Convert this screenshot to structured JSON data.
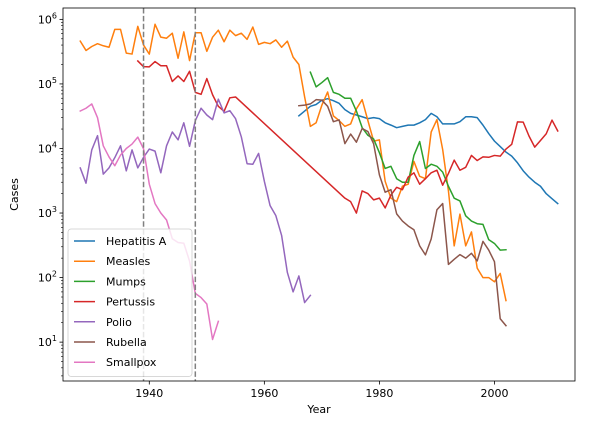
{
  "chart_data": {
    "type": "line",
    "title": "",
    "xlabel": "Year",
    "ylabel": "Cases",
    "xlim": [
      1925,
      2014
    ],
    "ylim": [
      2.5,
      1500000
    ],
    "yscale": "log",
    "xticks": [
      1940,
      1960,
      1980,
      2000
    ],
    "yticks": [
      {
        "value": 10,
        "base": "10",
        "exp": "1"
      },
      {
        "value": 100,
        "base": "10",
        "exp": "2"
      },
      {
        "value": 1000,
        "base": "10",
        "exp": "3"
      },
      {
        "value": 10000,
        "base": "10",
        "exp": "4"
      },
      {
        "value": 100000,
        "base": "10",
        "exp": "5"
      },
      {
        "value": 1000000,
        "base": "10",
        "exp": "6"
      }
    ],
    "vlines": [
      1939,
      1948
    ],
    "grid": false,
    "legend": "lower-left",
    "series": [
      {
        "name": "Hepatitis A",
        "color": "#1f77b4",
        "x": [
          1966,
          1967,
          1968,
          1969,
          1970,
          1971,
          1972,
          1973,
          1974,
          1975,
          1976,
          1977,
          1978,
          1979,
          1980,
          1981,
          1982,
          1983,
          1984,
          1985,
          1986,
          1987,
          1988,
          1989,
          1990,
          1991,
          1992,
          1993,
          1994,
          1995,
          1996,
          1997,
          1998,
          1999,
          2000,
          2001,
          2002,
          2003,
          2004,
          2005,
          2006,
          2007,
          2008,
          2009,
          2010,
          2011
        ],
        "y": [
          32000,
          38000,
          45000,
          48000,
          56000,
          59000,
          55000,
          50000,
          40000,
          35000,
          33000,
          31000,
          29000,
          30000,
          29000,
          25000,
          23000,
          21000,
          22000,
          23000,
          23000,
          25000,
          28000,
          35000,
          31000,
          24000,
          24000,
          24000,
          26000,
          31000,
          31000,
          30000,
          23000,
          17000,
          13000,
          10700,
          8800,
          7600,
          6000,
          4500,
          3600,
          3000,
          2600,
          1990,
          1670,
          1400
        ]
      },
      {
        "name": "Measles",
        "color": "#ff7f0e",
        "x": [
          1928,
          1929,
          1930,
          1931,
          1932,
          1933,
          1934,
          1935,
          1936,
          1937,
          1938,
          1939,
          1940,
          1941,
          1942,
          1943,
          1944,
          1945,
          1946,
          1947,
          1948,
          1949,
          1950,
          1951,
          1952,
          1953,
          1954,
          1955,
          1956,
          1957,
          1958,
          1959,
          1960,
          1961,
          1962,
          1963,
          1964,
          1965,
          1966,
          1967,
          1968,
          1969,
          1970,
          1971,
          1972,
          1973,
          1974,
          1975,
          1976,
          1977,
          1978,
          1979,
          1980,
          1981,
          1982,
          1983,
          1984,
          1985,
          1986,
          1987,
          1988,
          1989,
          1990,
          1991,
          1992,
          1993,
          1994,
          1995,
          1996,
          1997,
          1998,
          1999,
          2000,
          2001,
          2002
        ],
        "y": [
          460000,
          330000,
          380000,
          420000,
          390000,
          370000,
          700000,
          700000,
          300000,
          290000,
          780000,
          400000,
          290000,
          840000,
          530000,
          510000,
          610000,
          250000,
          640000,
          230000,
          620000,
          620000,
          320000,
          530000,
          680000,
          450000,
          680000,
          560000,
          610000,
          490000,
          760000,
          410000,
          440000,
          420000,
          480000,
          370000,
          460000,
          260000,
          200000,
          63000,
          22000,
          25000,
          47000,
          75000,
          32000,
          27000,
          22000,
          24000,
          41000,
          57000,
          27000,
          13000,
          13600,
          3100,
          1700,
          1500,
          2600,
          2800,
          6300,
          3700,
          3400,
          18000,
          28000,
          9600,
          2200,
          310,
          960,
          310,
          510,
          140,
          100,
          100,
          86,
          116,
          44
        ]
      },
      {
        "name": "Mumps",
        "color": "#2ca02c",
        "x": [
          1968,
          1969,
          1970,
          1971,
          1972,
          1973,
          1974,
          1975,
          1976,
          1977,
          1978,
          1979,
          1980,
          1981,
          1982,
          1983,
          1984,
          1985,
          1986,
          1987,
          1988,
          1989,
          1990,
          1991,
          1992,
          1993,
          1994,
          1995,
          1996,
          1997,
          1998,
          1999,
          2000,
          2001,
          2002
        ],
        "y": [
          152000,
          90000,
          105000,
          125000,
          74000,
          69000,
          60000,
          60000,
          38000,
          21000,
          16000,
          14000,
          8600,
          4900,
          5300,
          3400,
          3000,
          3000,
          7800,
          12800,
          4900,
          5700,
          5300,
          4300,
          2600,
          1700,
          1540,
          906,
          750,
          683,
          666,
          387,
          338,
          266,
          270
        ]
      },
      {
        "name": "Pertussis",
        "color": "#d62728",
        "x": [
          1938,
          1939,
          1940,
          1941,
          1942,
          1943,
          1944,
          1945,
          1946,
          1947,
          1948,
          1949,
          1950,
          1951,
          1952,
          1953,
          1954,
          1955,
          1974,
          1975,
          1976,
          1977,
          1978,
          1979,
          1980,
          1981,
          1982,
          1983,
          1984,
          1985,
          1986,
          1987,
          1988,
          1989,
          1990,
          1991,
          1992,
          1993,
          1994,
          1995,
          1996,
          1997,
          1998,
          1999,
          2000,
          2001,
          2002,
          2003,
          2004,
          2005,
          2006,
          2007,
          2008,
          2009,
          2010,
          2011
        ],
        "y": [
          227000,
          185000,
          184000,
          222000,
          191000,
          191000,
          109000,
          133000,
          109000,
          157000,
          74000,
          69000,
          121000,
          68000,
          45000,
          37700,
          60900,
          62800,
          1700,
          1500,
          1000,
          2200,
          2000,
          1600,
          1700,
          1200,
          1900,
          2500,
          2300,
          3600,
          4200,
          2800,
          3400,
          4200,
          4600,
          2700,
          4100,
          6600,
          4600,
          5100,
          7800,
          6500,
          7400,
          7300,
          7800,
          7600,
          9800,
          11600,
          25800,
          25600,
          15600,
          10500,
          13300,
          16900,
          27500,
          18700
        ]
      },
      {
        "name": "Polio",
        "color": "#9467bd",
        "x": [
          1928,
          1929,
          1930,
          1931,
          1932,
          1933,
          1934,
          1935,
          1936,
          1937,
          1938,
          1939,
          1940,
          1941,
          1942,
          1943,
          1944,
          1945,
          1946,
          1947,
          1948,
          1949,
          1950,
          1951,
          1952,
          1953,
          1954,
          1955,
          1956,
          1957,
          1958,
          1959,
          1960,
          1961,
          1962,
          1963,
          1964,
          1965,
          1966,
          1967,
          1968
        ],
        "y": [
          5000,
          2900,
          9500,
          15800,
          4000,
          5000,
          7200,
          11000,
          4500,
          9500,
          5000,
          7300,
          9800,
          9100,
          4200,
          11000,
          18000,
          13600,
          25000,
          10800,
          27000,
          42000,
          33000,
          28000,
          58000,
          35600,
          38500,
          28900,
          15100,
          5800,
          5700,
          8400,
          3100,
          1300,
          910,
          450,
          120,
          60,
          106,
          41,
          53
        ]
      },
      {
        "name": "Rubella",
        "color": "#8c564b",
        "x": [
          1966,
          1967,
          1968,
          1969,
          1970,
          1971,
          1972,
          1973,
          1974,
          1975,
          1976,
          1977,
          1978,
          1979,
          1980,
          1981,
          1982,
          1983,
          1984,
          1985,
          1986,
          1987,
          1988,
          1989,
          1990,
          1991,
          1992,
          1993,
          1994,
          1995,
          1996,
          1997,
          1998,
          1999,
          2000,
          2001,
          2002
        ],
        "y": [
          46000,
          47000,
          49000,
          57000,
          56000,
          45000,
          26000,
          27700,
          11900,
          16700,
          12500,
          20400,
          18300,
          11800,
          3900,
          2100,
          2300,
          970,
          750,
          630,
          550,
          310,
          225,
          396,
          1125,
          1401,
          160,
          192,
          227,
          200,
          238,
          181,
          364,
          267,
          176,
          23,
          18
        ]
      },
      {
        "name": "Smallpox",
        "color": "#e377c2",
        "x": [
          1928,
          1929,
          1930,
          1931,
          1932,
          1933,
          1934,
          1935,
          1936,
          1937,
          1938,
          1939,
          1940,
          1941,
          1942,
          1943,
          1944,
          1945,
          1946,
          1947,
          1948,
          1949,
          1950,
          1951,
          1952
        ],
        "y": [
          38000,
          42000,
          49000,
          30000,
          11000,
          7400,
          5400,
          7900,
          10000,
          11700,
          15000,
          9900,
          2800,
          1400,
          1000,
          780,
          400,
          350,
          340,
          180,
          57,
          49,
          39,
          11,
          21
        ]
      }
    ]
  }
}
